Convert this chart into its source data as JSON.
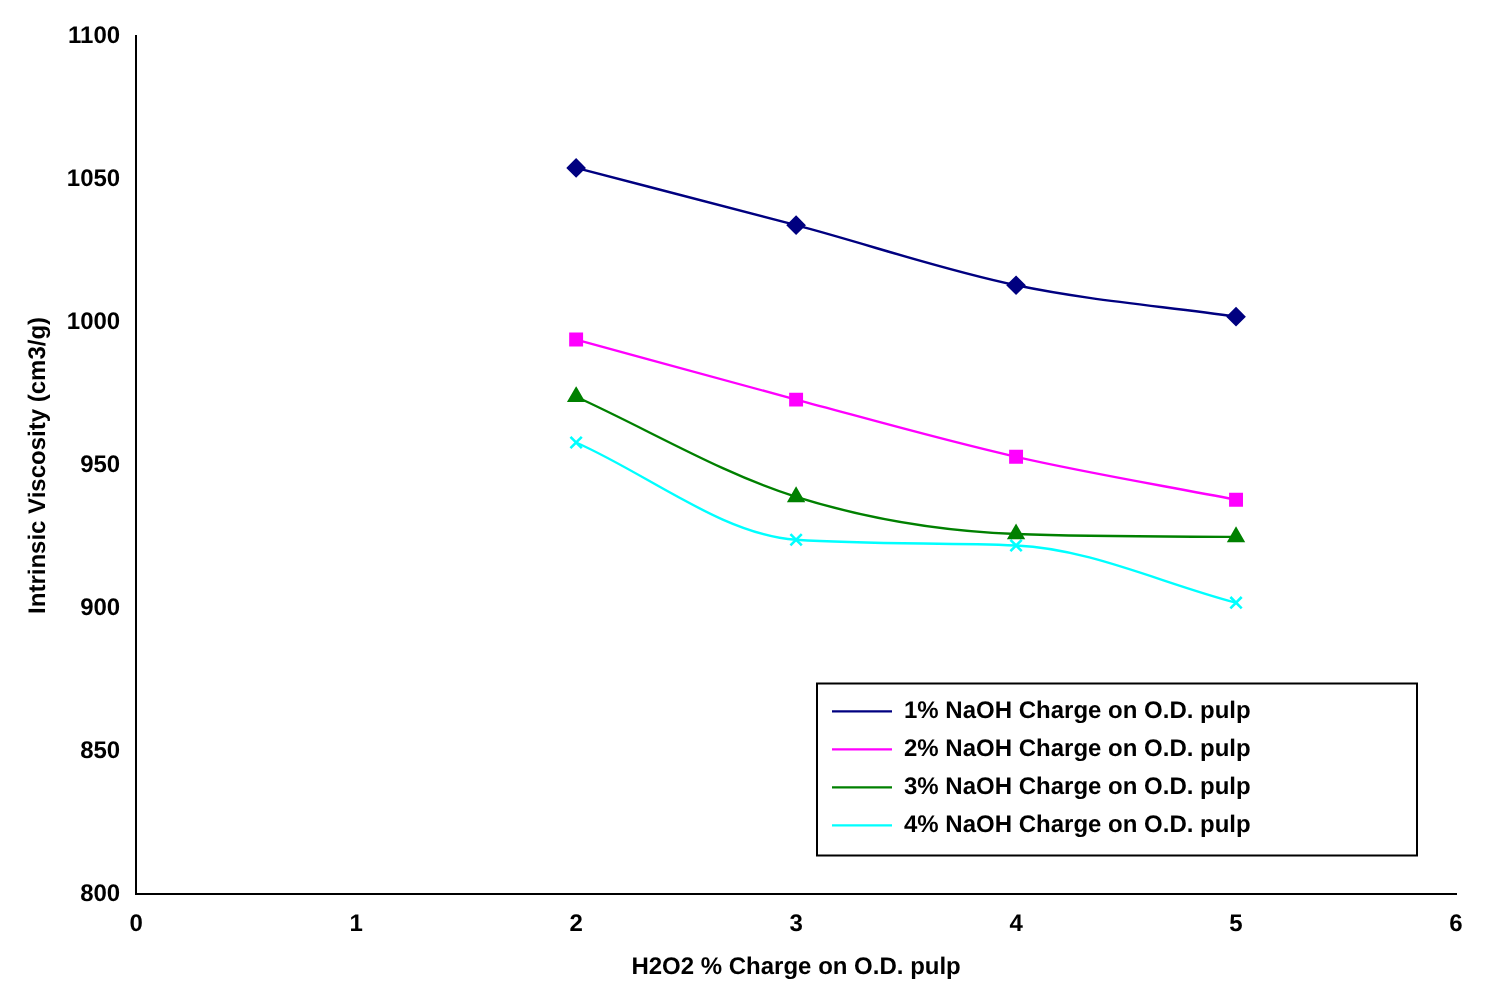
{
  "chart_data": {
    "type": "line",
    "xlabel": "H2O2 % Charge on O.D. pulp",
    "ylabel": "Intrinsic Viscosity (cm3/g)",
    "xlim": [
      0,
      6
    ],
    "xticks": [
      0,
      1,
      2,
      3,
      4,
      5,
      6
    ],
    "ylim": [
      800,
      1100
    ],
    "yticks": [
      800,
      850,
      900,
      950,
      1000,
      1050,
      1100
    ],
    "grid": false,
    "legend": "bottom right",
    "x": [
      2,
      3,
      4,
      5
    ],
    "series": [
      {
        "name": "1% NaOH Charge on O.D. pulp",
        "color": "#000080",
        "marker": "diamond",
        "values": [
          1054,
          1034,
          1013,
          1002
        ]
      },
      {
        "name": "2% NaOH Charge on O.D. pulp",
        "color": "#ff00ff",
        "marker": "square",
        "values": [
          994,
          973,
          953,
          938
        ]
      },
      {
        "name": "3% NaOH Charge on O.D. pulp",
        "color": "#008000",
        "marker": "triangle",
        "values": [
          974,
          939,
          926,
          925
        ]
      },
      {
        "name": "4% NaOH Charge on O.D. pulp",
        "color": "#00ffff",
        "marker": "cross",
        "values": [
          958,
          924,
          922,
          902
        ]
      }
    ]
  }
}
